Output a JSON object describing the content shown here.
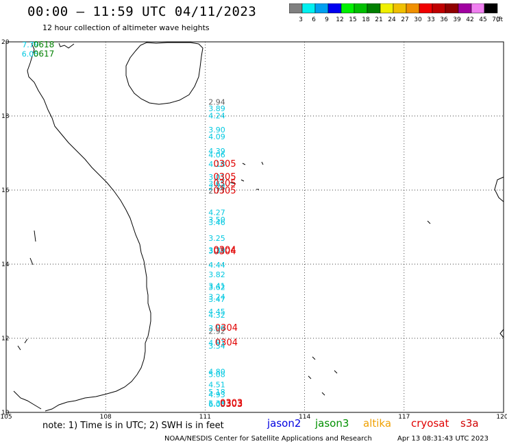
{
  "header": {
    "title": "00:00 – 11:59 UTC 04/11/2023",
    "subtitle": "12 hour collection of altimeter wave heights"
  },
  "colorbar": {
    "colors": [
      "#808080",
      "#00f0f0",
      "#00a0f0",
      "#0000f0",
      "#00f000",
      "#00c000",
      "#008000",
      "#f0f000",
      "#f0c000",
      "#f09000",
      "#f00000",
      "#c00000",
      "#900000",
      "#a000a0",
      "#f080f0",
      "#000000"
    ],
    "labels": [
      "3",
      "6",
      "9",
      "12",
      "15",
      "18",
      "21",
      "24",
      "27",
      "30",
      "33",
      "36",
      "39",
      "42",
      "45",
      "70"
    ],
    "unit": "(ft)"
  },
  "axes": {
    "lon_labels": [
      "105",
      "108",
      "111",
      "114",
      "117",
      "120"
    ],
    "lat_labels": [
      "20",
      "18",
      "16",
      "14",
      "12",
      "10"
    ]
  },
  "observations": [
    {
      "lat": 19.93,
      "lon": 105.48,
      "label": "7.79",
      "color": "#00c8e0",
      "font": 11
    },
    {
      "lat": 19.93,
      "lon": 105.82,
      "label": "0618",
      "color": "#008000",
      "font": 12
    },
    {
      "lat": 19.68,
      "lon": 105.47,
      "label": "6.05",
      "color": "#00c8e0",
      "font": 11
    },
    {
      "lat": 19.68,
      "lon": 105.82,
      "label": "0617",
      "color": "#008000",
      "font": 12
    },
    {
      "lat": 18.38,
      "lon": 111.1,
      "label": "2.94",
      "color": "#606060",
      "font": 11
    },
    {
      "lat": 18.2,
      "lon": 111.1,
      "label": "3.89",
      "color": "#00c8e0",
      "font": 11
    },
    {
      "lat": 18.01,
      "lon": 111.1,
      "label": "4.24",
      "color": "#00c8e0",
      "font": 11
    },
    {
      "lat": 17.63,
      "lon": 111.1,
      "label": "3.90",
      "color": "#00c8e0",
      "font": 11
    },
    {
      "lat": 17.44,
      "lon": 111.1,
      "label": "4.09",
      "color": "#00c8e0",
      "font": 11
    },
    {
      "lat": 17.06,
      "lon": 111.1,
      "label": "4.39",
      "color": "#00c8e0",
      "font": 11
    },
    {
      "lat": 16.95,
      "lon": 111.1,
      "label": "4.06",
      "color": "#00c8e0",
      "font": 11
    },
    {
      "lat": 16.7,
      "lon": 111.1,
      "label": "4.18",
      "color": "#00c8e0",
      "font": 11
    },
    {
      "lat": 16.7,
      "lon": 111.25,
      "label": "0305",
      "color": "#e00000",
      "font": 13
    },
    {
      "lat": 16.35,
      "lon": 111.1,
      "label": "3.01",
      "color": "#00c8e0",
      "font": 11
    },
    {
      "lat": 16.35,
      "lon": 111.25,
      "label": "0305",
      "color": "#e00000",
      "font": 13
    },
    {
      "lat": 16.18,
      "lon": 111.1,
      "label": "3.65",
      "color": "#00c8e0",
      "font": 11
    },
    {
      "lat": 16.18,
      "lon": 111.25,
      "label": "0305",
      "color": "#e00000",
      "font": 13
    },
    {
      "lat": 16.07,
      "lon": 111.1,
      "label": "2.78",
      "color": "#00c8e0",
      "font": 11
    },
    {
      "lat": 15.98,
      "lon": 111.1,
      "label": "2.77",
      "color": "#606060",
      "font": 11
    },
    {
      "lat": 15.98,
      "lon": 111.25,
      "label": "0305",
      "color": "#e00000",
      "font": 13
    },
    {
      "lat": 15.4,
      "lon": 111.1,
      "label": "4.27",
      "color": "#00c8e0",
      "font": 11
    },
    {
      "lat": 15.2,
      "lon": 111.1,
      "label": "3.50",
      "color": "#00c8e0",
      "font": 11
    },
    {
      "lat": 15.13,
      "lon": 111.1,
      "label": "3.46",
      "color": "#00c8e0",
      "font": 11
    },
    {
      "lat": 14.7,
      "lon": 111.1,
      "label": "3.25",
      "color": "#00c8e0",
      "font": 11
    },
    {
      "lat": 14.38,
      "lon": 111.1,
      "label": "3.39",
      "color": "#00c8e0",
      "font": 11
    },
    {
      "lat": 14.38,
      "lon": 111.25,
      "label": "0304",
      "color": "#e00000",
      "font": 13
    },
    {
      "lat": 14.36,
      "lon": 111.1,
      "label": "3.34",
      "color": "#00c8e0",
      "font": 11
    },
    {
      "lat": 14.34,
      "lon": 111.25,
      "label": "0304",
      "color": "#e00000",
      "font": 13
    },
    {
      "lat": 13.98,
      "lon": 111.1,
      "label": "4.44",
      "color": "#00c8e0",
      "font": 11
    },
    {
      "lat": 13.72,
      "lon": 111.1,
      "label": "3.82",
      "color": "#00c8e0",
      "font": 11
    },
    {
      "lat": 13.42,
      "lon": 111.1,
      "label": "3.41",
      "color": "#00c8e0",
      "font": 11
    },
    {
      "lat": 13.38,
      "lon": 111.1,
      "label": "3.62",
      "color": "#00c8e0",
      "font": 11
    },
    {
      "lat": 13.12,
      "lon": 111.1,
      "label": "3.24",
      "color": "#00c8e0",
      "font": 11
    },
    {
      "lat": 13.06,
      "lon": 111.1,
      "label": "3.47",
      "color": "#00c8e0",
      "font": 11
    },
    {
      "lat": 12.72,
      "lon": 111.1,
      "label": "4.45",
      "color": "#00c8e0",
      "font": 11
    },
    {
      "lat": 12.63,
      "lon": 111.1,
      "label": "4.32",
      "color": "#00c8e0",
      "font": 11
    },
    {
      "lat": 12.28,
      "lon": 111.1,
      "label": "3.56",
      "color": "#00c8e0",
      "font": 11
    },
    {
      "lat": 12.28,
      "lon": 111.3,
      "label": "0304",
      "color": "#e00000",
      "font": 13
    },
    {
      "lat": 12.19,
      "lon": 111.1,
      "label": "2.92",
      "color": "#606060",
      "font": 11
    },
    {
      "lat": 11.88,
      "lon": 111.1,
      "label": "4.81",
      "color": "#00c8e0",
      "font": 11
    },
    {
      "lat": 11.88,
      "lon": 111.3,
      "label": "0304",
      "color": "#e00000",
      "font": 13
    },
    {
      "lat": 11.8,
      "lon": 111.1,
      "label": "3.34",
      "color": "#00c8e0",
      "font": 11
    },
    {
      "lat": 11.1,
      "lon": 111.1,
      "label": "4.80",
      "color": "#00c8e0",
      "font": 11
    },
    {
      "lat": 11.03,
      "lon": 111.1,
      "label": "5.08",
      "color": "#00c8e0",
      "font": 11
    },
    {
      "lat": 10.75,
      "lon": 111.1,
      "label": "4.51",
      "color": "#00c8e0",
      "font": 11
    },
    {
      "lat": 10.56,
      "lon": 111.1,
      "label": "5.18",
      "color": "#00c8e0",
      "font": 11
    },
    {
      "lat": 10.48,
      "lon": 111.1,
      "label": "4.93",
      "color": "#00c8e0",
      "font": 11
    },
    {
      "lat": 10.25,
      "lon": 111.1,
      "label": "5.38",
      "color": "#00c8e0",
      "font": 11
    },
    {
      "lat": 10.25,
      "lon": 111.45,
      "label": "0303",
      "color": "#e00000",
      "font": 13
    },
    {
      "lat": 10.22,
      "lon": 111.1,
      "label": "6.05",
      "color": "#00c8e0",
      "font": 11
    },
    {
      "lat": 10.22,
      "lon": 111.45,
      "label": "0303",
      "color": "#e00000",
      "font": 13
    }
  ],
  "note": "note:  1) Time is in UTC;  2) SWH is in feet",
  "satellites": [
    {
      "name": "jason2",
      "color": "#0000e0"
    },
    {
      "name": "jason3",
      "color": "#009000"
    },
    {
      "name": "altika",
      "color": "#f0a000"
    },
    {
      "name": "cryosat",
      "color": "#e00000"
    },
    {
      "name": "s3a",
      "color": "#d00000"
    }
  ],
  "footer": {
    "credit": "NOAA/NESDIS Center for Satellite Applications and Research",
    "timestamp": "Apr 13 08:31:43 UTC 2023"
  }
}
